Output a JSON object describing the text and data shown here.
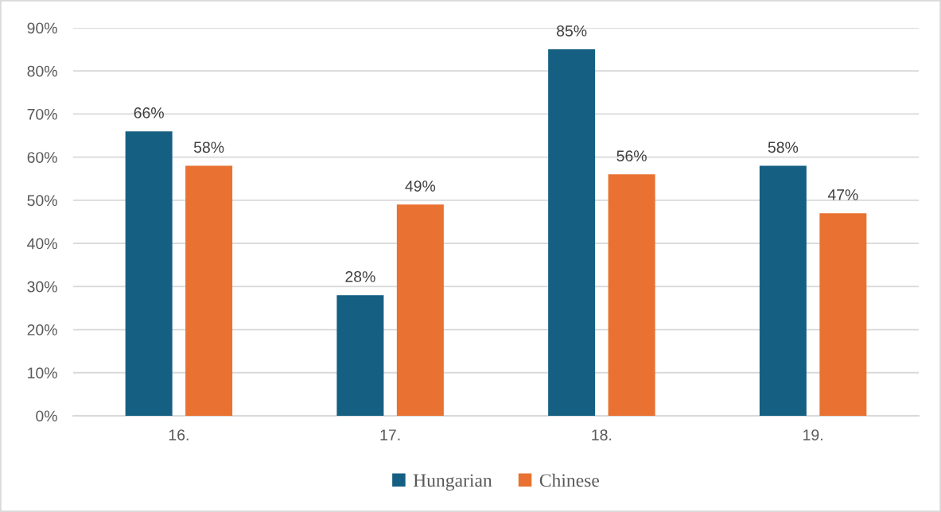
{
  "chart_data": {
    "type": "bar",
    "categories": [
      "16.",
      "17.",
      "18.",
      "19."
    ],
    "series": [
      {
        "name": "Hungarian",
        "color": "#156082",
        "values": [
          66,
          28,
          85,
          58
        ],
        "value_labels": [
          "66%",
          "28%",
          "85%",
          "58%"
        ]
      },
      {
        "name": "Chinese",
        "color": "#e97132",
        "values": [
          58,
          49,
          56,
          47
        ],
        "value_labels": [
          "58%",
          "49%",
          "56%",
          "47%"
        ]
      }
    ],
    "ylim": [
      0,
      90
    ],
    "yticks": [
      {
        "value": 0,
        "label": "0%"
      },
      {
        "value": 10,
        "label": "10%"
      },
      {
        "value": 20,
        "label": "20%"
      },
      {
        "value": 30,
        "label": "30%"
      },
      {
        "value": 40,
        "label": "40%"
      },
      {
        "value": 50,
        "label": "50%"
      },
      {
        "value": 60,
        "label": "60%"
      },
      {
        "value": 70,
        "label": "70%"
      },
      {
        "value": 80,
        "label": "80%"
      },
      {
        "value": 90,
        "label": "90%"
      }
    ],
    "grid": "y",
    "legend": "bottom"
  }
}
